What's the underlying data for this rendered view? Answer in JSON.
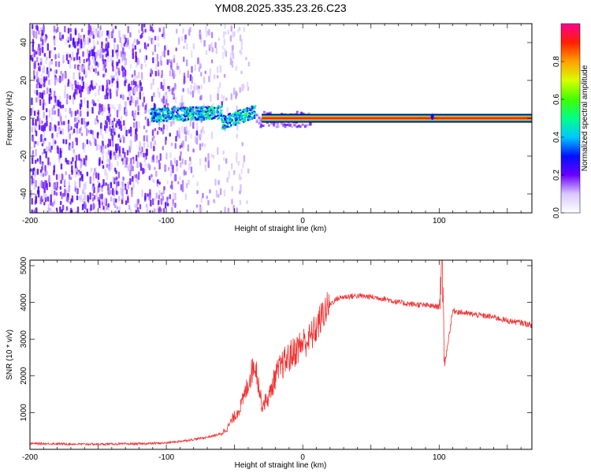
{
  "title": "YM08.2025.335.23.26.C23",
  "chart_data": [
    {
      "type": "heatmap",
      "name": "spectrogram",
      "xlabel": "Height of straight line (km)",
      "ylabel": "Frequency (Hz)",
      "xlim": [
        -200,
        168
      ],
      "ylim": [
        -50,
        50
      ],
      "xticks": [
        -200,
        -100,
        0,
        100
      ],
      "yticks": [
        -40,
        -20,
        0,
        20,
        40
      ],
      "colorbar": {
        "label": "Normalized spectral amplitude",
        "range": [
          0,
          1
        ],
        "ticks": [
          0.0,
          0.2,
          0.4,
          0.6,
          0.8
        ]
      },
      "features": [
        {
          "name": "noise-region",
          "x_range": [
            -200,
            -55
          ],
          "amplitude": 0.1
        },
        {
          "name": "signal-onset",
          "x_range": [
            -112,
            -35
          ],
          "freq_center": 2,
          "amplitude": 0.45
        },
        {
          "name": "carrier-line",
          "x_range": [
            -30,
            168
          ],
          "freq": 0,
          "amplitude": 0.95
        }
      ]
    },
    {
      "type": "line",
      "name": "snr",
      "xlabel": "Height of straight line (km)",
      "ylabel": "SNR (10 * v/v)",
      "xlim": [
        -200,
        168
      ],
      "ylim": [
        0,
        5150
      ],
      "xticks": [
        -200,
        -100,
        0,
        100
      ],
      "yticks": [
        1000,
        2000,
        3000,
        4000,
        5000
      ],
      "color": "#ef3333",
      "series": [
        {
          "name": "SNR",
          "x": [
            -200,
            -180,
            -160,
            -140,
            -120,
            -100,
            -90,
            -80,
            -70,
            -60,
            -55,
            -50,
            -45,
            -40,
            -35,
            -30,
            -25,
            -20,
            -15,
            -10,
            -5,
            0,
            5,
            10,
            15,
            20,
            25,
            30,
            40,
            50,
            60,
            70,
            80,
            90,
            95,
            100,
            102,
            104,
            110,
            120,
            130,
            140,
            150,
            160,
            168
          ],
          "y": [
            160,
            150,
            140,
            145,
            150,
            175,
            220,
            270,
            330,
            420,
            600,
            900,
            1200,
            1800,
            2400,
            1200,
            1400,
            2000,
            2300,
            2500,
            2700,
            2900,
            3000,
            3300,
            3700,
            3950,
            4100,
            4150,
            4180,
            4150,
            4100,
            4000,
            3950,
            3920,
            3900,
            3880,
            5100,
            2300,
            3780,
            3700,
            3650,
            3600,
            3500,
            3450,
            3380
          ]
        }
      ]
    }
  ]
}
